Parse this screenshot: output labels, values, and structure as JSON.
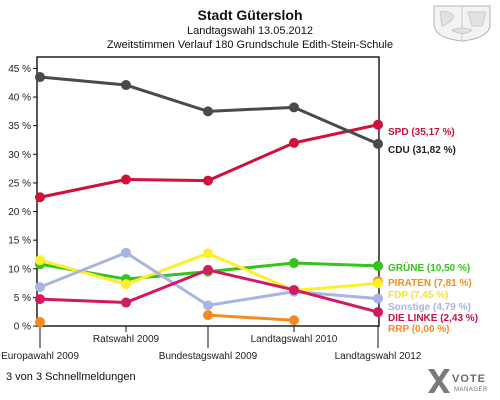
{
  "header": {
    "title": "Stadt Gütersloh",
    "subtitle1": "Landtagswahl 13.05.2012",
    "subtitle2": "Zweitstimmen Verlauf 180 Grundschule Edith-Stein-Schule"
  },
  "status": "3 von 3 Schnellmeldungen",
  "logo": {
    "main": "VOTE",
    "sub": "MANAGER",
    "icon": "vote-x-icon"
  },
  "crest": {
    "icon": "coat-of-arms-icon"
  },
  "chart_data": {
    "type": "line",
    "ylim": [
      0,
      47
    ],
    "y_ticks": [
      "0 %",
      "5 %",
      "10 %",
      "15 %",
      "20 %",
      "25 %",
      "30 %",
      "35 %",
      "40 %",
      "45 %"
    ],
    "y_tick_values": [
      0,
      5,
      10,
      15,
      20,
      25,
      30,
      35,
      40,
      45
    ],
    "x": [
      "Europawahl 2009",
      "Ratswahl 2009",
      "Bundestagswahl 2009",
      "Landtagswahl 2010",
      "Landtagswahl 2012"
    ],
    "grid": false,
    "legend_placement": "right",
    "series": [
      {
        "name": "SPD",
        "legend": "SPD (35,17 %)",
        "color": "#d0103a",
        "legend_color": "#d0103a",
        "values": [
          22.5,
          25.6,
          25.4,
          32.0,
          35.17
        ]
      },
      {
        "name": "CDU",
        "legend": "CDU (31,82 %)",
        "color": "#4a4a4a",
        "legend_color": "#222222",
        "values": [
          43.5,
          42.1,
          37.5,
          38.2,
          31.82
        ]
      },
      {
        "name": "GRÜNE",
        "legend": "GRÜNE (10,50 %)",
        "color": "#36c21f",
        "legend_color": "#36c21f",
        "values": [
          10.8,
          8.2,
          9.5,
          11.0,
          10.5
        ]
      },
      {
        "name": "PIRATEN",
        "legend": "PIRATEN (7,81 %)",
        "color": "#f58b1f",
        "legend_color": "#f58b1f",
        "values": [
          null,
          null,
          null,
          null,
          7.81
        ]
      },
      {
        "name": "FDP",
        "legend": "FDP (7,45 %)",
        "color": "#ffee2e",
        "legend_color": "#f4e23a",
        "values": [
          11.5,
          7.3,
          12.7,
          6.2,
          7.45
        ]
      },
      {
        "name": "Sonstige",
        "legend": "Sonstige (4,79 %)",
        "color": "#a9b4e6",
        "legend_color": "#a9b4e6",
        "values": [
          6.8,
          12.8,
          3.6,
          6.0,
          4.79
        ]
      },
      {
        "name": "DIE LINKE",
        "legend": "DIE LINKE (2,43 %)",
        "color": "#d11a5f",
        "legend_color": "#c8104a",
        "values": [
          4.7,
          4.1,
          9.8,
          6.3,
          2.43
        ]
      },
      {
        "name": "RRP",
        "legend": "RRP (0,00 %)",
        "color": "#f58b1f",
        "legend_color": "#f58b1f",
        "values": [
          0.7,
          null,
          1.9,
          1.0,
          null
        ]
      }
    ]
  }
}
